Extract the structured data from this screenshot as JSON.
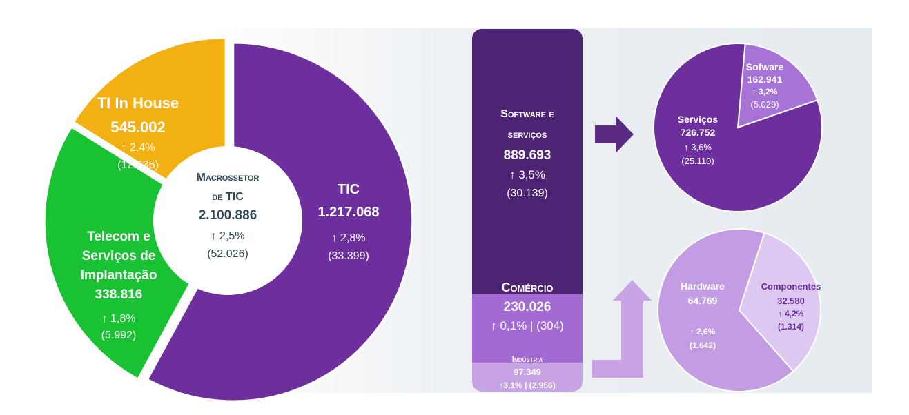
{
  "colors": {
    "background_band": "#e7ecf0",
    "tic_purple": "#6e2f9e",
    "ti_green": "#19c232",
    "telecom_orange": "#f3b012",
    "center_text": "#2f4858",
    "bar_dark": "#4d2473",
    "bar_mid": "#a36ad4",
    "bar_light": "#c8a4e6",
    "arrow_dark": "#5a2a82",
    "arrow_light": "#c8a4e6",
    "software_slice": "#a873d6",
    "hardware_slice": "#c39ce3",
    "componentes_slice": "#ddc8f1",
    "componentes_text": "#6a2f9a"
  },
  "chart_data": [
    {
      "type": "pie",
      "style": "donut",
      "title": "",
      "center": {
        "title_line1": "Macrossetor",
        "title_line2": "de TIC",
        "value": "2.100.886",
        "change": "↑ 2,5%",
        "delta": "(52.026)"
      },
      "slices": [
        {
          "name": "TIC",
          "value": 1217068,
          "value_label": "1.217.068",
          "change": "↑ 2,8%",
          "delta": "(33.399)",
          "color": "#6e2f9e"
        },
        {
          "name": "TI In House",
          "value": 545002,
          "value_label": "545.002",
          "change": "↑ 2,4%",
          "delta": "(12.635)",
          "color": "#19c232"
        },
        {
          "name": "Telecom e Serviços de Implantação",
          "value": 338816,
          "value_label": "338.816",
          "change": "↑ 1,8%",
          "delta": "(5.992)",
          "color": "#f3b012",
          "label_lines": [
            "Telecom e",
            "Serviços de",
            "Implantação"
          ]
        }
      ]
    },
    {
      "type": "bar",
      "style": "stacked-column",
      "segments": [
        {
          "name": "Software e serviços",
          "label_lines": [
            "Software e",
            "serviços"
          ],
          "value": 889693,
          "value_label": "889.693",
          "change": "↑ 3,5%",
          "delta": "(30.139)",
          "color": "#4d2473"
        },
        {
          "name": "Comércio",
          "value": 230026,
          "value_label": "230.026",
          "change_delta": "↑ 0,1% | (304)",
          "color": "#a36ad4"
        },
        {
          "name": "Indústria",
          "value": 97349,
          "value_label": "97.349",
          "change_delta": "↑3,1% | (2.956)",
          "color": "#c8a4e6"
        }
      ]
    },
    {
      "type": "pie",
      "slices": [
        {
          "name": "Serviços",
          "value": 726752,
          "value_label": "726.752",
          "change": "↑ 3,6%",
          "delta": "(25.110)",
          "color": "#6e2f9e"
        },
        {
          "name": "Sofware",
          "value": 162941,
          "value_label": "162.941",
          "change": "↑ 3,2%",
          "delta": "(5.029)",
          "color": "#a873d6"
        }
      ]
    },
    {
      "type": "pie",
      "slices": [
        {
          "name": "Hardware",
          "value": 64769,
          "value_label": "64.769",
          "change": "↑ 2,6%",
          "delta": "(1.642)",
          "color": "#c39ce3"
        },
        {
          "name": "Componentes",
          "value": 32580,
          "value_label": "32.580",
          "change": "↑ 4,2%",
          "delta": "(1.314)",
          "color": "#ddc8f1"
        }
      ]
    }
  ]
}
